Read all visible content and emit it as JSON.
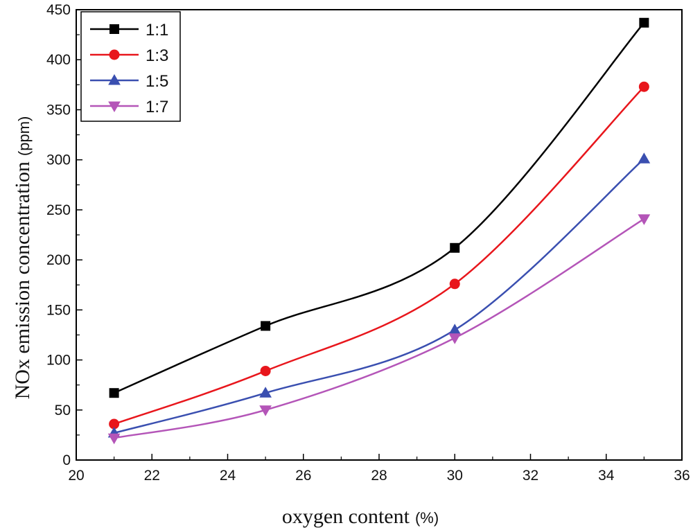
{
  "chart_data": {
    "type": "line",
    "title": "",
    "xlabel": "oxygen content",
    "xlabel_unit": "(%)",
    "ylabel": "NOx emission concentration",
    "ylabel_unit": "(ppm)",
    "xlim": [
      20,
      36
    ],
    "ylim": [
      0,
      450
    ],
    "xticks": [
      20,
      22,
      24,
      26,
      28,
      30,
      32,
      34,
      36
    ],
    "yticks": [
      0,
      50,
      100,
      150,
      200,
      250,
      300,
      350,
      400,
      450
    ],
    "grid": false,
    "legend_position": "top-left",
    "x": [
      21,
      25,
      30,
      35
    ],
    "series": [
      {
        "name": "1:1",
        "color": "#000000",
        "marker": "square",
        "values": [
          67,
          134,
          212,
          437
        ]
      },
      {
        "name": "1:3",
        "color": "#e8161c",
        "marker": "circle",
        "values": [
          36,
          89,
          176,
          373
        ]
      },
      {
        "name": "1:5",
        "color": "#3a4fb0",
        "marker": "triangle-up",
        "values": [
          27,
          67,
          130,
          301
        ]
      },
      {
        "name": "1:7",
        "color": "#b455b8",
        "marker": "triangle-down",
        "values": [
          22,
          50,
          122,
          241
        ]
      }
    ]
  }
}
